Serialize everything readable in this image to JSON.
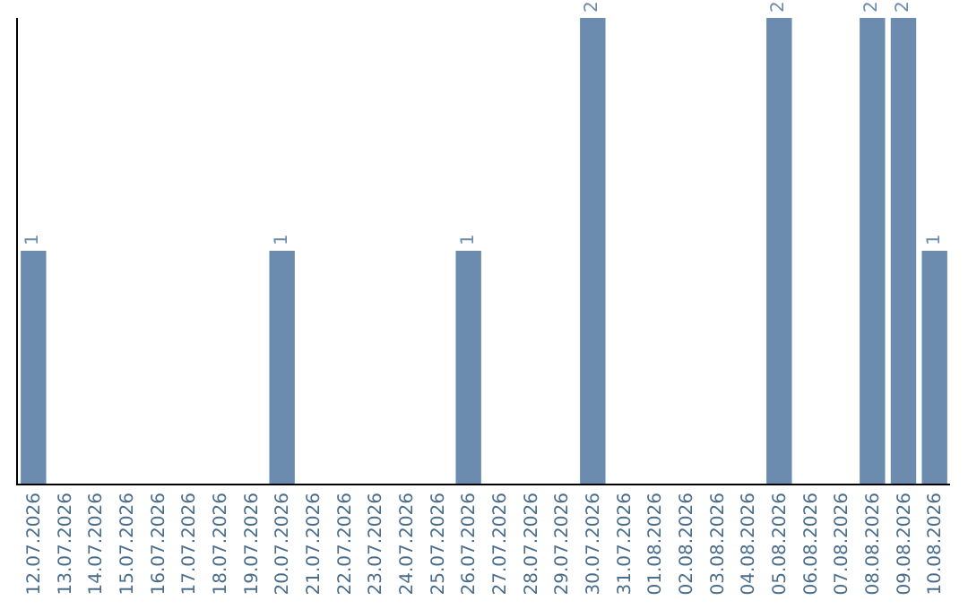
{
  "chart_data": {
    "type": "bar",
    "categories": [
      "12.07.2026",
      "13.07.2026",
      "14.07.2026",
      "15.07.2026",
      "16.07.2026",
      "17.07.2026",
      "18.07.2026",
      "19.07.2026",
      "20.07.2026",
      "21.07.2026",
      "22.07.2026",
      "23.07.2026",
      "24.07.2026",
      "25.07.2026",
      "26.07.2026",
      "27.07.2026",
      "28.07.2026",
      "29.07.2026",
      "30.07.2026",
      "31.07.2026",
      "01.08.2026",
      "02.08.2026",
      "03.08.2026",
      "04.08.2026",
      "05.08.2026",
      "06.08.2026",
      "07.08.2026",
      "08.08.2026",
      "09.08.2026",
      "10.08.2026"
    ],
    "values": [
      1,
      0,
      0,
      0,
      0,
      0,
      0,
      0,
      1,
      0,
      0,
      0,
      0,
      0,
      1,
      0,
      0,
      0,
      2,
      0,
      0,
      0,
      0,
      0,
      2,
      0,
      0,
      2,
      2,
      1
    ],
    "value_labels": [
      "1",
      null,
      null,
      null,
      null,
      null,
      null,
      null,
      "1",
      null,
      null,
      null,
      null,
      null,
      "1",
      null,
      null,
      null,
      "2",
      null,
      null,
      null,
      null,
      null,
      "2",
      null,
      null,
      "2",
      "2",
      "1"
    ],
    "color": "#6b8cae",
    "ylim": [
      0,
      2
    ],
    "tick_labels": "x",
    "grid": false,
    "legend": false
  }
}
